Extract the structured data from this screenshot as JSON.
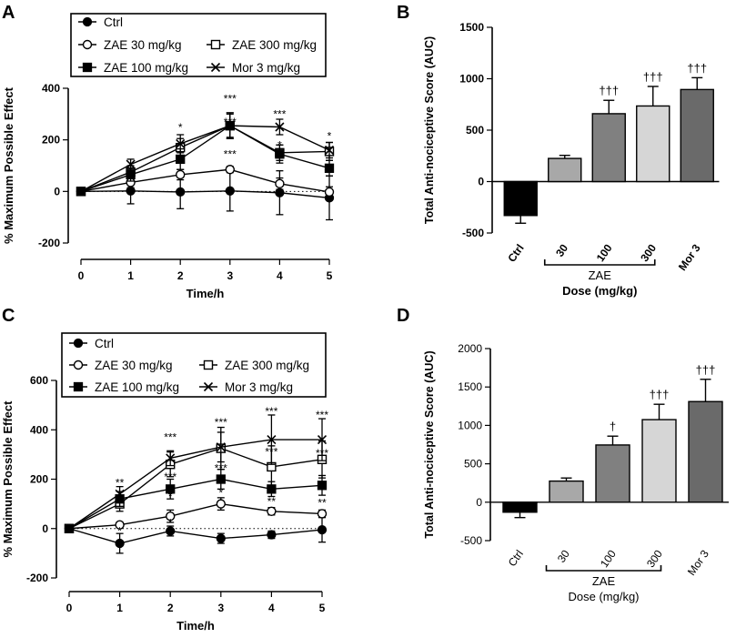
{
  "figure": {
    "panels": [
      "A",
      "B",
      "C",
      "D"
    ]
  },
  "chart_data": [
    {
      "panel": "A",
      "type": "line",
      "xlabel": "Time/h",
      "ylabel": "% Maximum Possible Effect",
      "x": [
        0,
        1,
        2,
        3,
        4,
        5
      ],
      "xticks": [
        "0",
        "1",
        "2",
        "3",
        "4",
        "5"
      ],
      "ylim": [
        -200,
        400
      ],
      "yticks": [
        -200,
        0,
        200,
        400
      ],
      "ytick_labels": [
        "-200",
        "0",
        "200",
        "400"
      ],
      "legend": {
        "placement": "top",
        "entries": [
          {
            "name": "Ctrl",
            "marker": "filled-circle"
          },
          {
            "name": "ZAE 30 mg/kg",
            "marker": "open-circle"
          },
          {
            "name": "ZAE 300 mg/kg",
            "marker": "open-square"
          },
          {
            "name": "ZAE 100 mg/kg",
            "marker": "filled-square"
          },
          {
            "name": "Mor 3 mg/kg",
            "marker": "cross"
          }
        ]
      },
      "series": [
        {
          "name": "Ctrl",
          "marker": "filled-circle",
          "values": [
            0,
            2,
            -2,
            2,
            -5,
            -25
          ],
          "errors": [
            0,
            50,
            65,
            78,
            85,
            85
          ]
        },
        {
          "name": "ZAE 30 mg/kg",
          "marker": "open-circle",
          "values": [
            0,
            35,
            65,
            85,
            30,
            -2
          ],
          "errors": [
            0,
            20,
            20,
            12,
            22,
            20
          ]
        },
        {
          "name": "ZAE 300 mg/kg",
          "marker": "open-square",
          "values": [
            0,
            75,
            170,
            255,
            150,
            155
          ],
          "errors": [
            0,
            25,
            35,
            50,
            30,
            35
          ]
        },
        {
          "name": "ZAE 100 mg/kg",
          "marker": "filled-square",
          "values": [
            0,
            65,
            125,
            255,
            145,
            90
          ],
          "errors": [
            0,
            25,
            40,
            50,
            35,
            30
          ]
        },
        {
          "name": "Mor 3 mg/kg",
          "marker": "cross",
          "values": [
            0,
            105,
            185,
            255,
            250,
            160
          ],
          "errors": [
            0,
            20,
            35,
            45,
            30,
            30
          ]
        }
      ],
      "annotations": [
        {
          "x": 2,
          "y": 235,
          "text": "*"
        },
        {
          "x": 3,
          "y": 345,
          "text": "***"
        },
        {
          "x": 3,
          "y": 255,
          "text": "***"
        },
        {
          "x": 3,
          "y": 130,
          "text": "***"
        },
        {
          "x": 4,
          "y": 285,
          "text": "***"
        },
        {
          "x": 4,
          "y": 165,
          "text": "*"
        },
        {
          "x": 5,
          "y": 200,
          "text": "*"
        },
        {
          "x": 5,
          "y": 140,
          "text": "*"
        }
      ]
    },
    {
      "panel": "B",
      "type": "bar",
      "ylabel": "Total Anti-nociceptive Score (AUC)",
      "xlabel": "Dose (mg/kg)",
      "group_label": "ZAE",
      "categories": [
        "Ctrl",
        "30",
        "100",
        "300",
        "Mor 3"
      ],
      "values": [
        -330,
        225,
        660,
        735,
        895
      ],
      "errors": [
        75,
        30,
        130,
        190,
        115
      ],
      "colors": [
        "#000000",
        "#a8a8a8",
        "#808080",
        "#d6d6d6",
        "#6a6a6a"
      ],
      "annotations": [
        "",
        "",
        "†††",
        "†††",
        "†††"
      ],
      "ylim": [
        -500,
        1500
      ],
      "yticks": [
        -500,
        0,
        500,
        1000,
        1500
      ],
      "ytick_labels": [
        "-500",
        "0",
        "500",
        "1000",
        "1500"
      ]
    },
    {
      "panel": "C",
      "type": "line",
      "xlabel": "Time/h",
      "ylabel": "% Maximum Possible Effect",
      "x": [
        0,
        1,
        2,
        3,
        4,
        5
      ],
      "xticks": [
        "0",
        "1",
        "2",
        "3",
        "4",
        "5"
      ],
      "ylim": [
        -200,
        600
      ],
      "yticks": [
        -200,
        0,
        200,
        400,
        600
      ],
      "ytick_labels": [
        "-200",
        "0",
        "200",
        "400",
        "600"
      ],
      "legend": {
        "placement": "top",
        "entries": [
          {
            "name": "Ctrl",
            "marker": "filled-circle"
          },
          {
            "name": "ZAE 30 mg/kg",
            "marker": "open-circle"
          },
          {
            "name": "ZAE 300 mg/kg",
            "marker": "open-square"
          },
          {
            "name": "ZAE 100 mg/kg",
            "marker": "filled-square"
          },
          {
            "name": "Mor 3 mg/kg",
            "marker": "cross"
          }
        ]
      },
      "series": [
        {
          "name": "Ctrl",
          "marker": "filled-circle",
          "values": [
            0,
            -60,
            -10,
            -40,
            -25,
            -5
          ],
          "errors": [
            0,
            40,
            20,
            20,
            15,
            50
          ]
        },
        {
          "name": "ZAE 30 mg/kg",
          "marker": "open-circle",
          "values": [
            0,
            15,
            50,
            100,
            70,
            60
          ],
          "errors": [
            0,
            10,
            25,
            25,
            15,
            15
          ]
        },
        {
          "name": "ZAE 300 mg/kg",
          "marker": "open-square",
          "values": [
            0,
            100,
            260,
            325,
            250,
            280
          ],
          "errors": [
            0,
            30,
            50,
            85,
            85,
            75
          ]
        },
        {
          "name": "ZAE 100 mg/kg",
          "marker": "filled-square",
          "values": [
            0,
            120,
            160,
            200,
            160,
            175
          ],
          "errors": [
            0,
            30,
            40,
            40,
            30,
            40
          ]
        },
        {
          "name": "Mor 3 mg/kg",
          "marker": "cross",
          "values": [
            0,
            140,
            285,
            330,
            360,
            360
          ],
          "errors": [
            0,
            30,
            30,
            60,
            100,
            85
          ]
        }
      ],
      "annotations": [
        {
          "x": 1,
          "y": 170,
          "text": "**"
        },
        {
          "x": 1,
          "y": 105,
          "text": "*"
        },
        {
          "x": 1,
          "y": -25,
          "text": "*"
        },
        {
          "x": 2,
          "y": 355,
          "text": "***"
        },
        {
          "x": 2,
          "y": 195,
          "text": "***"
        },
        {
          "x": 2,
          "y": 115,
          "text": "*"
        },
        {
          "x": 2,
          "y": 8,
          "text": "*"
        },
        {
          "x": 3,
          "y": 415,
          "text": "***"
        },
        {
          "x": 3,
          "y": 230,
          "text": "***"
        },
        {
          "x": 3,
          "y": 130,
          "text": "*"
        },
        {
          "x": 4,
          "y": 460,
          "text": "***"
        },
        {
          "x": 4,
          "y": 295,
          "text": "***"
        },
        {
          "x": 4,
          "y": 95,
          "text": "**"
        },
        {
          "x": 5,
          "y": 445,
          "text": "***"
        },
        {
          "x": 5,
          "y": 290,
          "text": "***"
        },
        {
          "x": 5,
          "y": 90,
          "text": "**"
        }
      ]
    },
    {
      "panel": "D",
      "type": "bar",
      "ylabel": "Total Anti-nociceptive Score (AUC)",
      "xlabel": "Dose (mg/kg)",
      "group_label": "ZAE",
      "categories": [
        "Ctrl",
        "30",
        "100",
        "300",
        "Mor 3"
      ],
      "values": [
        -130,
        275,
        745,
        1075,
        1310
      ],
      "errors": [
        70,
        40,
        115,
        200,
        290
      ],
      "colors": [
        "#000000",
        "#a8a8a8",
        "#808080",
        "#d6d6d6",
        "#6a6a6a"
      ],
      "annotations": [
        "",
        "",
        "†",
        "†††",
        "†††"
      ],
      "ylim": [
        -500,
        2000
      ],
      "yticks": [
        -500,
        0,
        500,
        1000,
        1500,
        2000
      ],
      "ytick_labels": [
        "-500",
        "0",
        "500",
        "1000",
        "1500",
        "2000"
      ]
    }
  ]
}
